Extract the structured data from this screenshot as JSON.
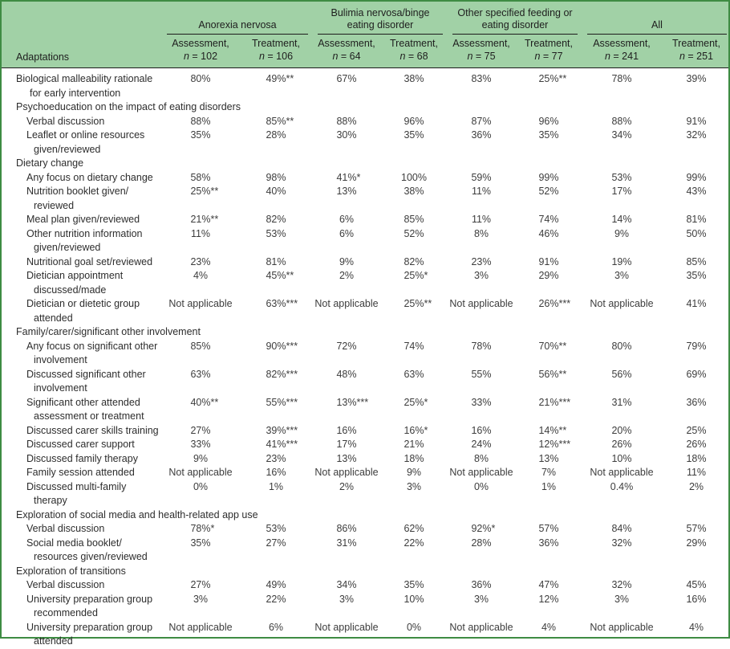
{
  "table": {
    "corner_label": "Adaptations",
    "groups": [
      {
        "label": "Anorexia nervosa",
        "cols": [
          {
            "label": "Assessment,",
            "n_var": "n",
            "n_rest": " = 102"
          },
          {
            "label": "Treatment,",
            "n_var": "n",
            "n_rest": " = 106"
          }
        ]
      },
      {
        "label": "Bulimia nervosa/binge eating disorder",
        "cols": [
          {
            "label": "Assessment,",
            "n_var": "n",
            "n_rest": " = 64"
          },
          {
            "label": "Treatment,",
            "n_var": "n",
            "n_rest": " = 68"
          }
        ]
      },
      {
        "label": "Other specified feeding or eating disorder",
        "cols": [
          {
            "label": "Assessment,",
            "n_var": "n",
            "n_rest": " = 75"
          },
          {
            "label": "Treatment,",
            "n_var": "n",
            "n_rest": " = 77"
          }
        ]
      },
      {
        "label": "All",
        "cols": [
          {
            "label": "Assessment,",
            "n_var": "n",
            "n_rest": " = 241"
          },
          {
            "label": "Treatment,",
            "n_var": "n",
            "n_rest": " = 251"
          }
        ]
      }
    ],
    "rows": [
      {
        "type": "data",
        "indent": 1,
        "label": "Biological malleability rationale for early intervention",
        "values": [
          "80%",
          "49%**",
          "67%",
          "38%",
          "83%",
          "25%**",
          "78%",
          "39%"
        ]
      },
      {
        "type": "section",
        "label": "Psychoeducation on the impact of eating disorders"
      },
      {
        "type": "data",
        "indent": 2,
        "label": "Verbal discussion",
        "values": [
          "88%",
          "85%**",
          "88%",
          "96%",
          "87%",
          "96%",
          "88%",
          "91%"
        ]
      },
      {
        "type": "data",
        "indent": 2,
        "label": "Leaflet or online resources given/reviewed",
        "values": [
          "35%",
          "28%",
          "30%",
          "35%",
          "36%",
          "35%",
          "34%",
          "32%"
        ]
      },
      {
        "type": "section",
        "label": "Dietary change"
      },
      {
        "type": "data",
        "indent": 2,
        "label": "Any focus on dietary change",
        "values": [
          "58%",
          "98%",
          "41%*",
          "100%",
          "59%",
          "99%",
          "53%",
          "99%"
        ]
      },
      {
        "type": "data",
        "indent": 2,
        "label": "Nutrition booklet given/ reviewed",
        "values": [
          "25%**",
          "40%",
          "13%",
          "38%",
          "11%",
          "52%",
          "17%",
          "43%"
        ]
      },
      {
        "type": "data",
        "indent": 2,
        "label": "Meal plan given/reviewed",
        "values": [
          "21%**",
          "82%",
          "6%",
          "85%",
          "11%",
          "74%",
          "14%",
          "81%"
        ]
      },
      {
        "type": "data",
        "indent": 2,
        "label": "Other nutrition information given/reviewed",
        "values": [
          "11%",
          "53%",
          "6%",
          "52%",
          "8%",
          "46%",
          "9%",
          "50%"
        ]
      },
      {
        "type": "data",
        "indent": 2,
        "label": "Nutritional goal set/reviewed",
        "values": [
          "23%",
          "81%",
          "9%",
          "82%",
          "23%",
          "91%",
          "19%",
          "85%"
        ]
      },
      {
        "type": "data",
        "indent": 2,
        "label": "Dietician appointment discussed/made",
        "values": [
          "4%",
          "45%**",
          "2%",
          "25%*",
          "3%",
          "29%",
          "3%",
          "35%"
        ]
      },
      {
        "type": "data",
        "indent": 2,
        "label": "Dietician or dietetic group attended",
        "values": [
          "Not applicable",
          "63%***",
          "Not applicable",
          "25%**",
          "Not applicable",
          "26%***",
          "Not applicable",
          "41%"
        ]
      },
      {
        "type": "section",
        "label": "Family/carer/significant other involvement"
      },
      {
        "type": "data",
        "indent": 2,
        "label": "Any focus on significant other involvement",
        "values": [
          "85%",
          "90%***",
          "72%",
          "74%",
          "78%",
          "70%**",
          "80%",
          "79%"
        ]
      },
      {
        "type": "data",
        "indent": 2,
        "label": "Discussed significant other involvement",
        "values": [
          "63%",
          "82%***",
          "48%",
          "63%",
          "55%",
          "56%**",
          "56%",
          "69%"
        ]
      },
      {
        "type": "data",
        "indent": 2,
        "label": "Significant other attended assessment or treatment",
        "values": [
          "40%**",
          "55%***",
          "13%***",
          "25%*",
          "33%",
          "21%***",
          "31%",
          "36%"
        ]
      },
      {
        "type": "data",
        "indent": 2,
        "label": "Discussed carer skills training",
        "values": [
          "27%",
          "39%***",
          "16%",
          "16%*",
          "16%",
          "14%**",
          "20%",
          "25%"
        ]
      },
      {
        "type": "data",
        "indent": 2,
        "label": "Discussed carer support",
        "values": [
          "33%",
          "41%***",
          "17%",
          "21%",
          "24%",
          "12%***",
          "26%",
          "26%"
        ]
      },
      {
        "type": "data",
        "indent": 2,
        "label": "Discussed family therapy",
        "values": [
          "9%",
          "23%",
          "13%",
          "18%",
          "8%",
          "13%",
          "10%",
          "18%"
        ]
      },
      {
        "type": "data",
        "indent": 2,
        "label": "Family session attended",
        "values": [
          "Not applicable",
          "16%",
          "Not applicable",
          "9%",
          "Not applicable",
          "7%",
          "Not applicable",
          "11%"
        ]
      },
      {
        "type": "data",
        "indent": 2,
        "label": "Discussed multi-family therapy",
        "values": [
          "0%",
          "1%",
          "2%",
          "3%",
          "0%",
          "1%",
          "0.4%",
          "2%"
        ]
      },
      {
        "type": "section",
        "label": "Exploration of social media and health-related app use"
      },
      {
        "type": "data",
        "indent": 2,
        "label": "Verbal discussion",
        "values": [
          "78%*",
          "53%",
          "86%",
          "62%",
          "92%*",
          "57%",
          "84%",
          "57%"
        ]
      },
      {
        "type": "data",
        "indent": 2,
        "label": "Social media booklet/ resources given/reviewed",
        "values": [
          "35%",
          "27%",
          "31%",
          "22%",
          "28%",
          "36%",
          "32%",
          "29%"
        ]
      },
      {
        "type": "section",
        "label": "Exploration of transitions"
      },
      {
        "type": "data",
        "indent": 2,
        "label": "Verbal discussion",
        "values": [
          "27%",
          "49%",
          "34%",
          "35%",
          "36%",
          "47%",
          "32%",
          "45%"
        ]
      },
      {
        "type": "data",
        "indent": 2,
        "label": "University preparation group recommended",
        "values": [
          "3%",
          "22%",
          "3%",
          "10%",
          "3%",
          "12%",
          "3%",
          "16%"
        ]
      },
      {
        "type": "data",
        "indent": 2,
        "label": "University preparation group attended",
        "values": [
          "Not applicable",
          "6%",
          "Not applicable",
          "0%",
          "Not applicable",
          "4%",
          "Not applicable",
          "4%"
        ]
      }
    ]
  },
  "colors": {
    "header_bg": "#a1d1a6",
    "frame_border": "#3e8c43",
    "rule": "#1c1c1c",
    "text": "#2d2d2d"
  }
}
